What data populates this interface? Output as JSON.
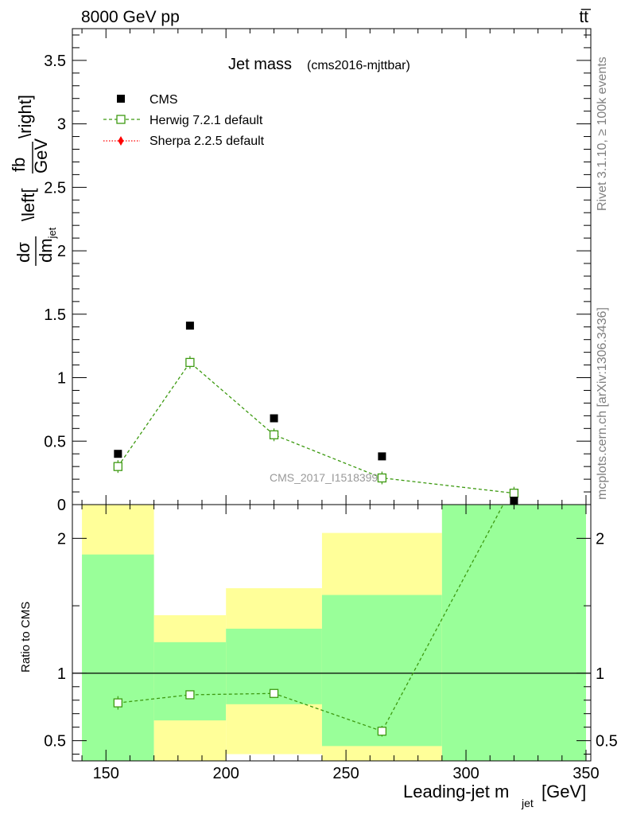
{
  "header": {
    "left": "8000 GeV pp",
    "right": "tt̅"
  },
  "side_labels": {
    "top": "Rivet 3.1.10, ≥ 100k events",
    "bottom": "mcplots.cern.ch [arXiv:1306.3436]"
  },
  "colors": {
    "cms": "#000000",
    "herwig": "#3d9a11",
    "sherpa": "#ff0000",
    "band_inner": "#99ff99",
    "band_outer": "#ffff99"
  },
  "chart_data": [
    {
      "type": "scatter",
      "title": "Jet mass",
      "subtitle": "(cms2016-mjttbar)",
      "ylabel": "dσ/dm_jet \\left[fb/GeV\\right]",
      "watermark": "CMS_2017_I1518399",
      "xlim": [
        136,
        352
      ],
      "ylim": [
        0,
        3.75
      ],
      "yticks": [
        0,
        0.5,
        1,
        1.5,
        2,
        2.5,
        3,
        3.5
      ],
      "ytick_labels": [
        "0",
        "0.5",
        "1",
        "1.5",
        "2",
        "2.5",
        "3",
        "3.5"
      ],
      "legend": {
        "position": "top-left",
        "entries": [
          "CMS",
          "Herwig 7.2.1 default",
          "Sherpa 2.2.5 default"
        ]
      },
      "series": [
        {
          "name": "CMS",
          "x": [
            155,
            185,
            220,
            265,
            320
          ],
          "y": [
            0.4,
            1.41,
            0.68,
            0.38,
            0.03
          ]
        },
        {
          "name": "Herwig 7.2.1 default",
          "x": [
            155,
            185,
            220,
            265,
            320
          ],
          "y": [
            0.3,
            1.12,
            0.55,
            0.21,
            0.09
          ]
        },
        {
          "name": "Sherpa 2.2.5 default",
          "x": [],
          "y": []
        }
      ]
    },
    {
      "type": "line",
      "ylabel": "Ratio to CMS",
      "xlabel": "Leading-jet m_jet [GeV]",
      "xlim": [
        136,
        352
      ],
      "ylim": [
        0.35,
        2.25
      ],
      "xticks": [
        150,
        200,
        250,
        300,
        350
      ],
      "xtick_labels": [
        "150",
        "200",
        "250",
        "300",
        "350"
      ],
      "yticks": [
        0.5,
        1,
        2
      ],
      "ytick_labels": [
        "0.5",
        "1",
        "2"
      ],
      "reference_line": 1,
      "bins": [
        {
          "x": [
            140,
            170
          ],
          "inner": [
            0.35,
            1.88
          ],
          "outer": [
            0.35,
            2.25
          ]
        },
        {
          "x": [
            170,
            200
          ],
          "inner": [
            0.65,
            1.23
          ],
          "outer": [
            0.35,
            1.43
          ]
        },
        {
          "x": [
            200,
            240
          ],
          "inner": [
            0.77,
            1.33
          ],
          "outer": [
            0.4,
            1.63
          ]
        },
        {
          "x": [
            240,
            290
          ],
          "inner": [
            0.46,
            1.58
          ],
          "outer": [
            0.35,
            2.04
          ]
        },
        {
          "x": [
            290,
            350
          ],
          "inner": [
            0.35,
            2.25
          ],
          "outer": [
            0.35,
            2.25
          ]
        }
      ],
      "series": [
        {
          "name": "Herwig 7.2.1 default",
          "x": [
            155,
            185,
            220,
            265,
            320
          ],
          "y": [
            0.78,
            0.84,
            0.85,
            0.57,
            2.4
          ],
          "err": [
            0.05,
            0.02,
            0.03,
            0.04,
            0.0
          ]
        }
      ]
    }
  ]
}
